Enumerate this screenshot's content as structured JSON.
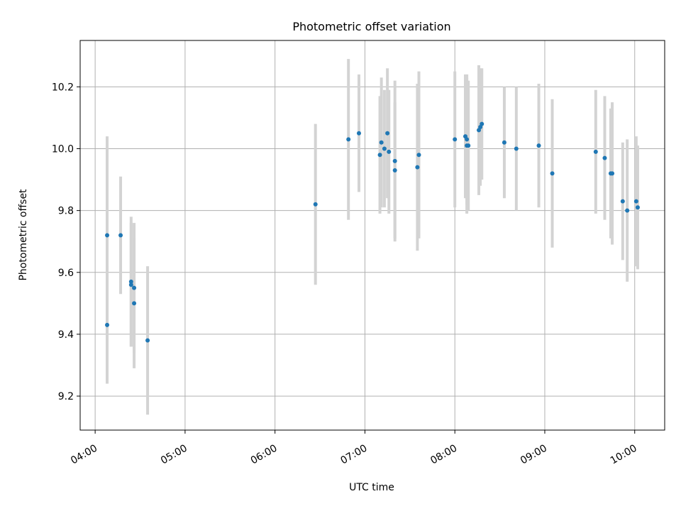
{
  "chart_data": {
    "type": "scatter",
    "title": "Photometric offset variation",
    "xlabel": "UTC time",
    "ylabel": "Photometric offset",
    "x_ticks": [
      "04:00",
      "05:00",
      "06:00",
      "07:00",
      "08:00",
      "09:00",
      "10:00"
    ],
    "y_ticks": [
      "9.2",
      "9.4",
      "9.6",
      "9.8",
      "10.0",
      "10.2"
    ],
    "xlim": [
      "03:50",
      "10:20"
    ],
    "ylim": [
      9.09,
      10.35
    ],
    "grid": true,
    "colors": {
      "point": "#1f77b4",
      "errorbar": "#d3d3d3",
      "grid": "#b0b0b0"
    },
    "points": [
      {
        "t": "04:08",
        "y": 9.72,
        "err": 0.32
      },
      {
        "t": "04:08",
        "y": 9.43,
        "err": 0.19
      },
      {
        "t": "04:17",
        "y": 9.72,
        "err": 0.19
      },
      {
        "t": "04:24",
        "y": 9.57,
        "err": 0.21
      },
      {
        "t": "04:24",
        "y": 9.56,
        "err": 0.2
      },
      {
        "t": "04:26",
        "y": 9.55,
        "err": 0.21
      },
      {
        "t": "04:26",
        "y": 9.5,
        "err": 0.21
      },
      {
        "t": "04:35",
        "y": 9.38,
        "err": 0.24
      },
      {
        "t": "06:27",
        "y": 9.82,
        "err": 0.26
      },
      {
        "t": "06:49",
        "y": 10.03,
        "err": 0.26
      },
      {
        "t": "06:56",
        "y": 10.05,
        "err": 0.19
      },
      {
        "t": "07:10",
        "y": 9.98,
        "err": 0.19
      },
      {
        "t": "07:11",
        "y": 10.02,
        "err": 0.21
      },
      {
        "t": "07:13",
        "y": 10.0,
        "err": 0.19
      },
      {
        "t": "07:15",
        "y": 10.05,
        "err": 0.21
      },
      {
        "t": "07:16",
        "y": 9.99,
        "err": 0.2
      },
      {
        "t": "07:20",
        "y": 9.93,
        "err": 0.22
      },
      {
        "t": "07:20",
        "y": 9.96,
        "err": 0.26
      },
      {
        "t": "07:35",
        "y": 9.94,
        "err": 0.27
      },
      {
        "t": "07:36",
        "y": 9.98,
        "err": 0.27
      },
      {
        "t": "08:00",
        "y": 10.03,
        "err": 0.22
      },
      {
        "t": "08:07",
        "y": 10.04,
        "err": 0.2
      },
      {
        "t": "08:08",
        "y": 10.03,
        "err": 0.21
      },
      {
        "t": "08:08",
        "y": 10.01,
        "err": 0.22
      },
      {
        "t": "08:09",
        "y": 10.01,
        "err": 0.21
      },
      {
        "t": "08:16",
        "y": 10.06,
        "err": 0.21
      },
      {
        "t": "08:17",
        "y": 10.07,
        "err": 0.19
      },
      {
        "t": "08:18",
        "y": 10.08,
        "err": 0.18
      },
      {
        "t": "08:33",
        "y": 10.02,
        "err": 0.18
      },
      {
        "t": "08:41",
        "y": 10.0,
        "err": 0.2
      },
      {
        "t": "08:56",
        "y": 10.01,
        "err": 0.2
      },
      {
        "t": "09:05",
        "y": 9.92,
        "err": 0.24
      },
      {
        "t": "09:34",
        "y": 9.99,
        "err": 0.2
      },
      {
        "t": "09:40",
        "y": 9.97,
        "err": 0.2
      },
      {
        "t": "09:44",
        "y": 9.92,
        "err": 0.21
      },
      {
        "t": "09:45",
        "y": 9.92,
        "err": 0.23
      },
      {
        "t": "09:52",
        "y": 9.83,
        "err": 0.19
      },
      {
        "t": "09:55",
        "y": 9.8,
        "err": 0.23
      },
      {
        "t": "10:01",
        "y": 9.83,
        "err": 0.21
      },
      {
        "t": "10:02",
        "y": 9.81,
        "err": 0.2
      }
    ]
  }
}
